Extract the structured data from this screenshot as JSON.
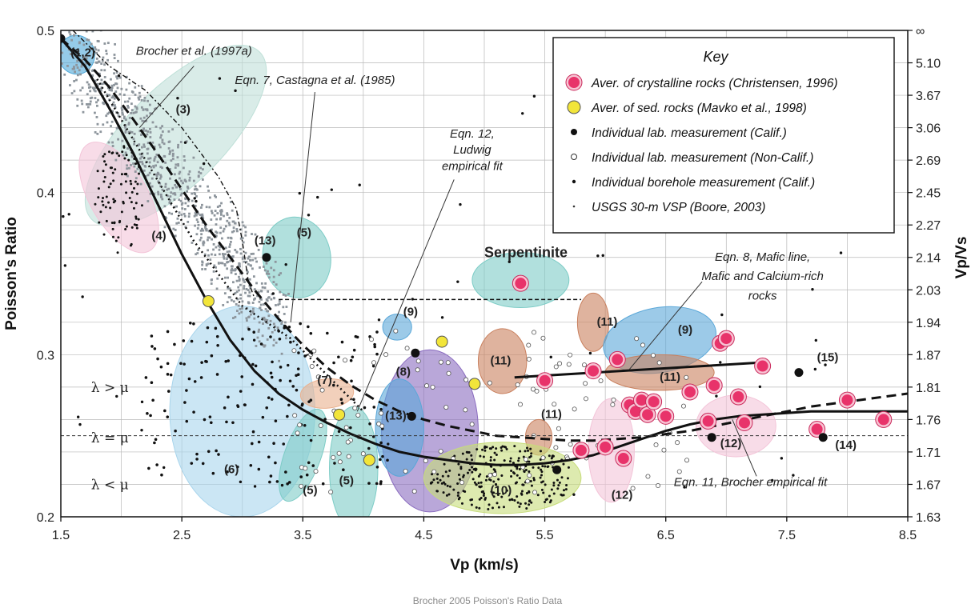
{
  "caption": "Brocher 2005 Poisson's Ratio Data",
  "chart_data": {
    "type": "scatter",
    "xlabel": "Vp (km/s)",
    "ylabel": "Poisson's Ratio",
    "ylabel_right": "Vp/Vs",
    "xlim": [
      1.5,
      8.5
    ],
    "ylim": [
      0.2,
      0.5
    ],
    "x_ticks": [
      "1.5",
      "2.5",
      "3.5",
      "4.5",
      "5.5",
      "6.5",
      "7.5",
      "8.5"
    ],
    "y_ticks": [
      "0.2",
      "0.3",
      "0.4",
      "0.5"
    ],
    "right_ticks": [
      {
        "label": "∞",
        "pr": 0.5
      },
      {
        "label": "5.10",
        "pr": 0.48
      },
      {
        "label": "3.67",
        "pr": 0.46
      },
      {
        "label": "3.06",
        "pr": 0.44
      },
      {
        "label": "2.69",
        "pr": 0.42
      },
      {
        "label": "2.45",
        "pr": 0.4
      },
      {
        "label": "2.27",
        "pr": 0.38
      },
      {
        "label": "2.14",
        "pr": 0.36
      },
      {
        "label": "2.03",
        "pr": 0.34
      },
      {
        "label": "1.94",
        "pr": 0.32
      },
      {
        "label": "1.87",
        "pr": 0.3
      },
      {
        "label": "1.81",
        "pr": 0.28
      },
      {
        "label": "1.76",
        "pr": 0.26
      },
      {
        "label": "1.71",
        "pr": 0.24
      },
      {
        "label": "1.67",
        "pr": 0.22
      },
      {
        "label": "1.63",
        "pr": 0.2
      }
    ],
    "grid": true,
    "legend": {
      "position": "top-right",
      "title": "Key",
      "items": [
        {
          "label": "Aver. of crystalline rocks (Christensen, 1996)",
          "marker": "big-pink",
          "color": "#e8336a"
        },
        {
          "label": "Aver. of sed. rocks (Mavko et al., 1998)",
          "marker": "yellow",
          "color": "#f2e53a"
        },
        {
          "label": "Individual lab. measurement (Calif.)",
          "marker": "black",
          "color": "#111111"
        },
        {
          "label": "Individual lab. measurement (Non-Calif.)",
          "marker": "open",
          "color": "#ffffff"
        },
        {
          "label": "Individual borehole measurement (Calif.)",
          "marker": "small-black",
          "color": "#111111"
        },
        {
          "label": "USGS 30-m VSP (Boore, 2003)",
          "marker": "tiny",
          "color": "#333333"
        }
      ]
    },
    "lambda_lines": [
      {
        "pr": 0.25,
        "text_above": "λ > μ",
        "text_on": "λ = μ",
        "text_below": "λ < μ"
      }
    ],
    "curves": [
      {
        "name": "Eqn. 11, Brocher empirical fit",
        "style": "solid",
        "x": [
          1.5,
          1.7,
          1.9,
          2.1,
          2.3,
          2.5,
          2.7,
          2.9,
          3.1,
          3.3,
          3.5,
          3.7,
          3.9,
          4.1,
          4.3,
          4.5,
          4.7,
          4.9,
          5.1,
          5.3,
          5.5,
          5.7,
          5.9,
          6.1,
          6.3,
          6.5,
          6.7,
          6.9,
          7.1,
          7.3,
          7.5,
          7.7,
          7.9,
          8.1,
          8.3,
          8.5
        ],
        "y": [
          0.495,
          0.478,
          0.452,
          0.424,
          0.393,
          0.362,
          0.334,
          0.309,
          0.29,
          0.276,
          0.266,
          0.258,
          0.251,
          0.245,
          0.24,
          0.237,
          0.235,
          0.233,
          0.232,
          0.232,
          0.233,
          0.235,
          0.238,
          0.243,
          0.248,
          0.253,
          0.257,
          0.26,
          0.262,
          0.263,
          0.264,
          0.265,
          0.265,
          0.265,
          0.265,
          0.265
        ]
      },
      {
        "name": "Eqn. 7, Castagna et al. (1985)",
        "style": "dashed",
        "x": [
          1.5,
          1.7,
          1.9,
          2.1,
          2.3,
          2.5,
          2.7,
          2.9,
          3.1,
          3.3,
          3.5,
          3.7,
          3.9,
          4.1,
          4.3,
          4.5,
          4.7,
          4.9,
          5.1,
          5.3,
          5.5,
          5.7,
          5.9,
          6.1,
          6.3,
          6.5,
          6.7,
          6.9,
          7.1,
          7.3,
          7.5,
          7.7,
          7.9,
          8.1,
          8.3,
          8.5
        ],
        "y": [
          0.495,
          0.482,
          0.465,
          0.445,
          0.424,
          0.402,
          0.38,
          0.36,
          0.34,
          0.322,
          0.306,
          0.292,
          0.281,
          0.272,
          0.265,
          0.26,
          0.256,
          0.253,
          0.25,
          0.249,
          0.248,
          0.247,
          0.247,
          0.248,
          0.249,
          0.251,
          0.253,
          0.256,
          0.259,
          0.262,
          0.265,
          0.268,
          0.27,
          0.272,
          0.274,
          0.276
        ]
      },
      {
        "name": "Eqn. 12, Ludwig empirical fit",
        "style": "dotted",
        "x": [
          1.8,
          2.2,
          2.6,
          3.0,
          3.4,
          3.8,
          4.0
        ],
        "y": [
          0.47,
          0.42,
          0.37,
          0.33,
          0.31,
          0.28,
          0.265
        ]
      },
      {
        "name": "Brocher et al. (1997a)",
        "style": "dashdot",
        "x": [
          1.6,
          1.9,
          2.2,
          2.5,
          2.8,
          2.95,
          3.0,
          3.05,
          3.1
        ],
        "y": [
          0.5,
          0.478,
          0.463,
          0.44,
          0.41,
          0.39,
          0.37,
          0.345,
          0.335
        ]
      },
      {
        "name": "Eqn. 8, Mafic line",
        "style": "solid-thick",
        "x": [
          5.25,
          7.25
        ],
        "y": [
          0.286,
          0.295
        ]
      },
      {
        "name": "serpentinite level",
        "style": "short-dash",
        "x": [
          3.3,
          5.8
        ],
        "y": [
          0.334,
          0.334
        ]
      }
    ],
    "regions": [
      {
        "label": "(1,2)",
        "cx": 1.63,
        "cy": 0.485,
        "rx": 0.15,
        "ry": 0.012,
        "rot": -5,
        "color": "#4fa8d8"
      },
      {
        "label": "(3)",
        "cx": 2.45,
        "cy": 0.435,
        "rx": 0.98,
        "ry": 0.03,
        "rot": -45,
        "color": "#bfe0d8"
      },
      {
        "label": "(4)",
        "cx": 1.98,
        "cy": 0.397,
        "rx": 0.24,
        "ry": 0.038,
        "rot": -30,
        "color": "#f3c4d8"
      },
      {
        "label": "(5)",
        "cx": 3.45,
        "cy": 0.36,
        "rx": 0.28,
        "ry": 0.025,
        "rot": -10,
        "color": "#7dccc6"
      },
      {
        "label": "(6)",
        "cx": 3.0,
        "cy": 0.265,
        "rx": 0.6,
        "ry": 0.065,
        "rot": 0,
        "color": "#a9d5ec"
      },
      {
        "label": "(7)",
        "cx": 3.7,
        "cy": 0.276,
        "rx": 0.22,
        "ry": 0.009,
        "rot": -5,
        "color": "#eab08e"
      },
      {
        "label": "(5)",
        "cx": 3.5,
        "cy": 0.238,
        "rx": 0.15,
        "ry": 0.03,
        "rot": 20,
        "color": "#7dccc6"
      },
      {
        "label": "(5)",
        "cx": 3.92,
        "cy": 0.23,
        "rx": 0.2,
        "ry": 0.038,
        "rot": 0,
        "color": "#7dccc6"
      },
      {
        "label": "(8)",
        "cx": 4.55,
        "cy": 0.253,
        "rx": 0.4,
        "ry": 0.05,
        "rot": 0,
        "color": "#8a6cbf"
      },
      {
        "label": "(13)",
        "cx": 4.3,
        "cy": 0.255,
        "rx": 0.2,
        "ry": 0.03,
        "rot": 0,
        "color": "#5aa7d8"
      },
      {
        "label": "(9)",
        "cx": 4.28,
        "cy": 0.317,
        "rx": 0.12,
        "ry": 0.008,
        "rot": 0,
        "color": "#5aa7d8"
      },
      {
        "label": "Serpentinite",
        "cx": 5.3,
        "cy": 0.346,
        "rx": 0.4,
        "ry": 0.017,
        "rot": 0,
        "color": "#7dccc6"
      },
      {
        "label": "(11)",
        "cx": 5.15,
        "cy": 0.296,
        "rx": 0.2,
        "ry": 0.02,
        "rot": 0,
        "color": "#c9805e"
      },
      {
        "label": "(11)",
        "cx": 5.9,
        "cy": 0.32,
        "rx": 0.13,
        "ry": 0.018,
        "rot": 0,
        "color": "#c9805e"
      },
      {
        "label": "(11)",
        "cx": 5.45,
        "cy": 0.249,
        "rx": 0.11,
        "ry": 0.011,
        "rot": 0,
        "color": "#c9805e"
      },
      {
        "label": "(9)",
        "cx": 6.45,
        "cy": 0.309,
        "rx": 0.47,
        "ry": 0.02,
        "rot": -10,
        "color": "#5aa7d8"
      },
      {
        "label": "(11)",
        "cx": 6.45,
        "cy": 0.289,
        "rx": 0.45,
        "ry": 0.011,
        "rot": 0,
        "color": "#c9805e"
      },
      {
        "label": "(10)",
        "cx": 5.15,
        "cy": 0.224,
        "rx": 0.65,
        "ry": 0.022,
        "rot": 0,
        "color": "#c7dc7a"
      },
      {
        "label": "(12)",
        "cx": 6.05,
        "cy": 0.241,
        "rx": 0.19,
        "ry": 0.032,
        "rot": 0,
        "color": "#f3c4d8"
      },
      {
        "label": "(12)",
        "cx": 7.08,
        "cy": 0.256,
        "rx": 0.33,
        "ry": 0.019,
        "rot": 0,
        "color": "#f3c4d8"
      }
    ],
    "region_label_positions": [
      {
        "label": "(1,2)",
        "x": 1.58,
        "y": 0.484
      },
      {
        "label": "(3)",
        "x": 2.45,
        "y": 0.449
      },
      {
        "label": "(4)",
        "x": 2.25,
        "y": 0.371
      },
      {
        "label": "(5)",
        "x": 3.45,
        "y": 0.373
      },
      {
        "label": "(6)",
        "x": 2.85,
        "y": 0.227
      },
      {
        "label": "(7)",
        "x": 3.62,
        "y": 0.282
      },
      {
        "label": "(5)",
        "x": 3.5,
        "y": 0.214
      },
      {
        "label": "(5)",
        "x": 3.8,
        "y": 0.22
      },
      {
        "label": "(8)",
        "x": 4.27,
        "y": 0.287
      },
      {
        "label": "(13)",
        "x": 4.18,
        "y": 0.26
      },
      {
        "label": "(9)",
        "x": 4.33,
        "y": 0.324
      },
      {
        "label": "Serpentinite",
        "x": 5.0,
        "y": 0.36
      },
      {
        "label": "(11)",
        "x": 5.05,
        "y": 0.294
      },
      {
        "label": "(11)",
        "x": 5.93,
        "y": 0.318
      },
      {
        "label": "(11)",
        "x": 5.47,
        "y": 0.261
      },
      {
        "label": "(9)",
        "x": 6.6,
        "y": 0.313
      },
      {
        "label": "(11)",
        "x": 6.45,
        "y": 0.284
      },
      {
        "label": "(10)",
        "x": 5.05,
        "y": 0.214
      },
      {
        "label": "(12)",
        "x": 6.05,
        "y": 0.211
      },
      {
        "label": "(12)",
        "x": 6.95,
        "y": 0.243
      },
      {
        "label": "(13)",
        "x": 3.1,
        "y": 0.368
      },
      {
        "label": "(14)",
        "x": 7.9,
        "y": 0.242
      },
      {
        "label": "(15)",
        "x": 7.75,
        "y": 0.296
      }
    ],
    "annotations": [
      {
        "text": "Brocher et al. (1997a)",
        "x": 2.6,
        "y": 0.485,
        "italic": true
      },
      {
        "text": "Eqn. 7, Castagna et al. (1985)",
        "x": 3.6,
        "y": 0.467,
        "italic": true
      },
      {
        "text": "Eqn. 12,",
        "x": 4.9,
        "y": 0.434,
        "italic": true
      },
      {
        "text": "Ludwig",
        "x": 4.9,
        "y": 0.424,
        "italic": true
      },
      {
        "text": "empirical fit",
        "x": 4.9,
        "y": 0.414,
        "italic": true
      },
      {
        "text": "Eqn. 8, Mafic line,",
        "x": 7.3,
        "y": 0.358,
        "italic": true
      },
      {
        "text": "Mafic and Calcium-rich",
        "x": 7.3,
        "y": 0.346,
        "italic": true
      },
      {
        "text": "rocks",
        "x": 7.3,
        "y": 0.334,
        "italic": true
      },
      {
        "text": "Eqn. 11, Brocher empirical fit",
        "x": 7.2,
        "y": 0.219,
        "italic": true
      }
    ],
    "series": [
      {
        "name": "Aver. of crystalline rocks (Christensen, 1996)",
        "marker": "big-pink",
        "x": [
          5.3,
          5.5,
          5.8,
          6.0,
          6.1,
          6.2,
          6.25,
          6.3,
          6.35,
          6.4,
          6.5,
          6.7,
          6.85,
          6.9,
          6.95,
          7.0,
          7.1,
          7.15,
          7.3,
          7.75,
          8.0,
          8.3,
          5.9,
          6.15
        ],
        "y": [
          0.344,
          0.284,
          0.241,
          0.243,
          0.297,
          0.269,
          0.265,
          0.272,
          0.263,
          0.271,
          0.262,
          0.277,
          0.259,
          0.281,
          0.307,
          0.31,
          0.274,
          0.258,
          0.293,
          0.254,
          0.272,
          0.26,
          0.29,
          0.236
        ]
      },
      {
        "name": "Aver. of sed. rocks (Mavko et al., 1998)",
        "marker": "yellow",
        "x": [
          2.72,
          3.8,
          4.05,
          4.65,
          4.92
        ],
        "y": [
          0.333,
          0.263,
          0.235,
          0.308,
          0.282
        ]
      },
      {
        "name": "Individual lab. measurement (Calif.) - large",
        "marker": "black-large",
        "x": [
          1.5,
          3.2,
          4.4,
          4.43,
          7.6,
          7.8,
          5.6,
          6.88
        ],
        "y": [
          0.495,
          0.36,
          0.262,
          0.301,
          0.289,
          0.249,
          0.229,
          0.249
        ]
      }
    ]
  }
}
